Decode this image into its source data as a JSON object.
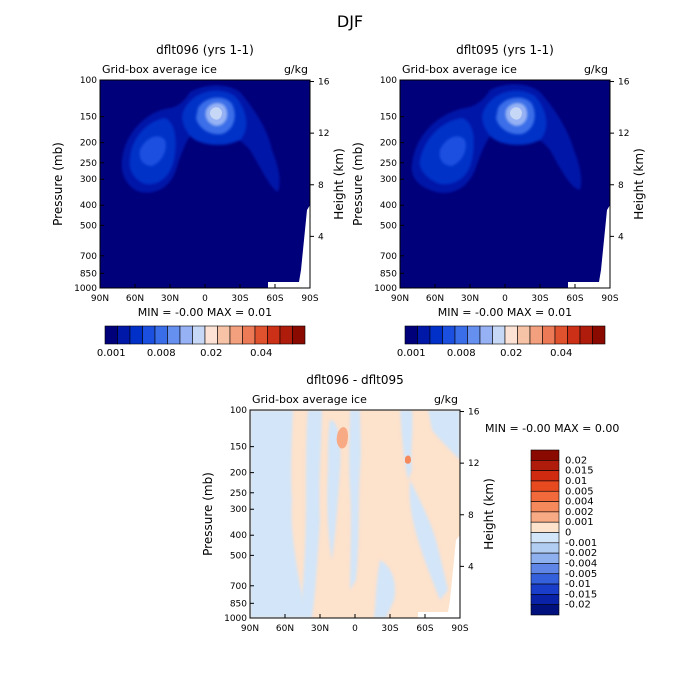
{
  "figure_title": "DJF",
  "chart_data": [
    {
      "type": "heatmap",
      "title": "dflt096 (yrs 1-1)",
      "subtitle_left": "Grid-box average ice",
      "subtitle_right": "g/kg",
      "xlabel": "",
      "ylabel": "Pressure (mb)",
      "ylabel_right": "Height (km)",
      "x_ticks": [
        "90N",
        "60N",
        "30N",
        "0",
        "30S",
        "60S",
        "90S"
      ],
      "y_ticks": [
        "100",
        "150",
        "200",
        "250",
        "300",
        "400",
        "500",
        "700",
        "850",
        "1000"
      ],
      "y_ticks_right": [
        "16",
        "12",
        "8",
        "4"
      ],
      "stats": "MIN = -0.00   MAX = 0.01",
      "colorbar_labels": [
        "0.001",
        "0.008",
        "0.02",
        "0.04"
      ],
      "colorbar_colors": [
        "#00007a",
        "#0018a8",
        "#0030c8",
        "#1a4fe0",
        "#3a6ee8",
        "#6690f0",
        "#96b2f4",
        "#c7d8f7",
        "#fbe2d4",
        "#f7c3a6",
        "#f2a07e",
        "#ec7a57",
        "#e0512e",
        "#cc3016",
        "#b01c0c",
        "#8a0a00"
      ]
    },
    {
      "type": "heatmap",
      "title": "dflt095 (yrs 1-1)",
      "subtitle_left": "Grid-box average ice",
      "subtitle_right": "g/kg",
      "xlabel": "",
      "ylabel": "Pressure (mb)",
      "ylabel_right": "Height (km)",
      "x_ticks": [
        "90N",
        "60N",
        "30N",
        "0",
        "30S",
        "60S",
        "90S"
      ],
      "y_ticks": [
        "100",
        "150",
        "200",
        "250",
        "300",
        "400",
        "500",
        "700",
        "850",
        "1000"
      ],
      "y_ticks_right": [
        "16",
        "12",
        "8",
        "4"
      ],
      "stats": "MIN = -0.00   MAX = 0.01",
      "colorbar_labels": [
        "0.001",
        "0.008",
        "0.02",
        "0.04"
      ],
      "colorbar_colors": [
        "#00007a",
        "#0018a8",
        "#0030c8",
        "#1a4fe0",
        "#3a6ee8",
        "#6690f0",
        "#96b2f4",
        "#c7d8f7",
        "#fbe2d4",
        "#f7c3a6",
        "#f2a07e",
        "#ec7a57",
        "#e0512e",
        "#cc3016",
        "#b01c0c",
        "#8a0a00"
      ]
    },
    {
      "type": "heatmap",
      "title": "dflt096 - dflt095",
      "subtitle_left": "Grid-box average ice",
      "subtitle_right": "g/kg",
      "xlabel": "",
      "ylabel": "Pressure (mb)",
      "ylabel_right": "Height (km)",
      "x_ticks": [
        "90N",
        "60N",
        "30N",
        "0",
        "30S",
        "60S",
        "90S"
      ],
      "y_ticks": [
        "100",
        "150",
        "200",
        "250",
        "300",
        "400",
        "500",
        "700",
        "850",
        "1000"
      ],
      "y_ticks_right": [
        "16",
        "12",
        "8",
        "4"
      ],
      "stats": "MIN = -0.00   MAX = 0.00",
      "colorbar_labels": [
        "0.02",
        "0.015",
        "0.01",
        "0.005",
        "0.004",
        "0.002",
        "0.001",
        "0",
        "-0.001",
        "-0.002",
        "-0.004",
        "-0.005",
        "-0.01",
        "-0.015",
        "-0.02"
      ],
      "colorbar_colors": [
        "#8a0a00",
        "#b01c0c",
        "#d02a10",
        "#e84a20",
        "#f26a3c",
        "#f5895c",
        "#f7aa84",
        "#fde2cc",
        "#d3e5f8",
        "#b2cdf2",
        "#8fb0ee",
        "#5f86e6",
        "#3560dc",
        "#1a3dca",
        "#0a22a8",
        "#00107c"
      ]
    }
  ]
}
